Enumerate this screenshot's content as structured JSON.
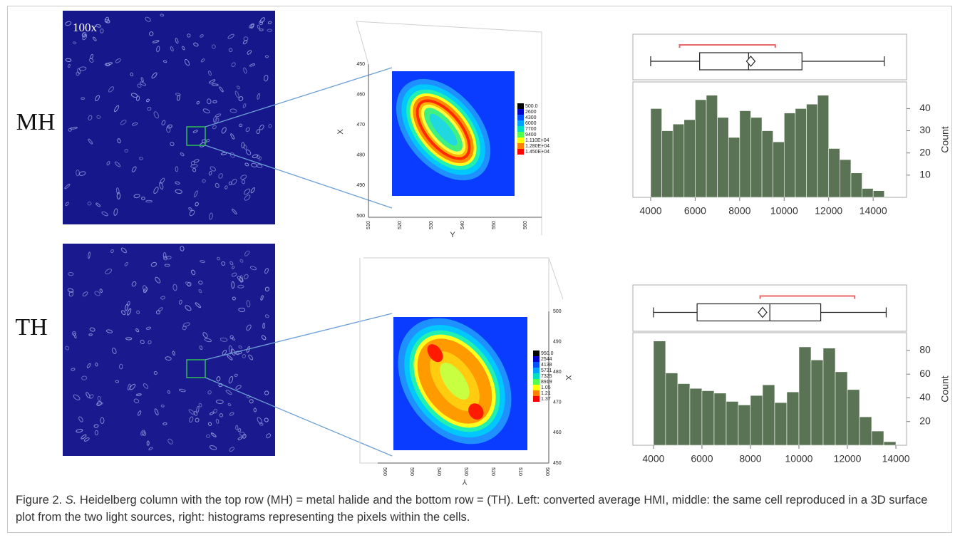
{
  "figure": {
    "row_labels": [
      "MH",
      "TH"
    ],
    "magnification": "100x",
    "surface_plots": [
      {
        "x_axis_title": "X",
        "y_axis_title": "Y",
        "x_ticks": [
          450,
          460,
          470,
          480,
          490,
          500
        ],
        "y_ticks": [
          510,
          520,
          530,
          540,
          550,
          560
        ],
        "legend": [
          "500.0",
          "2600",
          "4300",
          "6000",
          "7700",
          "9400",
          "1.110E+04",
          "1.280E+04",
          "1.450E+04"
        ]
      },
      {
        "x_axis_title": "X",
        "y_axis_title": "Y",
        "x_ticks": [
          500,
          490,
          480,
          470,
          460,
          450
        ],
        "y_ticks": [
          560,
          550,
          540,
          530,
          520,
          510,
          500
        ],
        "legend": [
          "950.0",
          "2544",
          "4138",
          "5731",
          "7325",
          "8919",
          "1.05",
          "1.21",
          "1.37"
        ]
      }
    ]
  },
  "chart_data": [
    {
      "type": "histogram",
      "color": "#5b7355",
      "bins": [
        4000,
        4500,
        5000,
        5500,
        6000,
        6500,
        7000,
        7500,
        8000,
        8500,
        9000,
        9500,
        10000,
        10500,
        11000,
        11500,
        12000,
        12500,
        13000,
        13500,
        14000,
        14500
      ],
      "values": [
        40,
        30,
        33,
        35,
        44,
        46,
        36,
        27,
        39,
        36,
        30,
        25,
        38,
        40,
        42,
        46,
        22,
        17,
        11,
        4,
        3
      ],
      "xlim": [
        3200,
        15500
      ],
      "xticks": [
        4000,
        6000,
        8000,
        10000,
        12000,
        14000
      ],
      "ylim": [
        0,
        52
      ],
      "yticks": [
        10,
        20,
        30,
        40
      ],
      "y_label": "Count",
      "box": {
        "whisker_low": 4000,
        "q1": 6200,
        "median": 8400,
        "q3": 10800,
        "whisker_high": 14500,
        "mean": 8500,
        "shortest_half": [
          5300,
          9600
        ]
      }
    },
    {
      "type": "histogram",
      "color": "#5b7355",
      "bins": [
        4000,
        4500,
        5000,
        5500,
        6000,
        6500,
        7000,
        7500,
        8000,
        8500,
        9000,
        9500,
        10000,
        10500,
        11000,
        11500,
        12000,
        12500,
        13000,
        13500,
        14000
      ],
      "values": [
        88,
        61,
        52,
        48,
        46,
        44,
        37,
        34,
        42,
        51,
        36,
        45,
        83,
        72,
        82,
        62,
        47,
        24,
        12,
        3
      ],
      "xlim": [
        3150,
        14440
      ],
      "xticks": [
        4000,
        6000,
        8000,
        10000,
        12000,
        14000
      ],
      "ylim": [
        0,
        95
      ],
      "yticks": [
        20,
        40,
        60,
        80
      ],
      "y_label": "Count",
      "box": {
        "whisker_low": 4000,
        "q1": 5800,
        "median": 8800,
        "q3": 10900,
        "whisker_high": 13600,
        "mean": 8500,
        "shortest_half": [
          8400,
          12300
        ]
      }
    }
  ],
  "caption": {
    "label": "Figure 2.",
    "species": "S.",
    "text": "Heidelberg column with the top row (MH) = metal halide and the bottom row = (TH). Left: converted average HMI, middle: the same cell reproduced in a 3D surface plot from the two light sources, right: histograms representing the pixels within the cells."
  }
}
